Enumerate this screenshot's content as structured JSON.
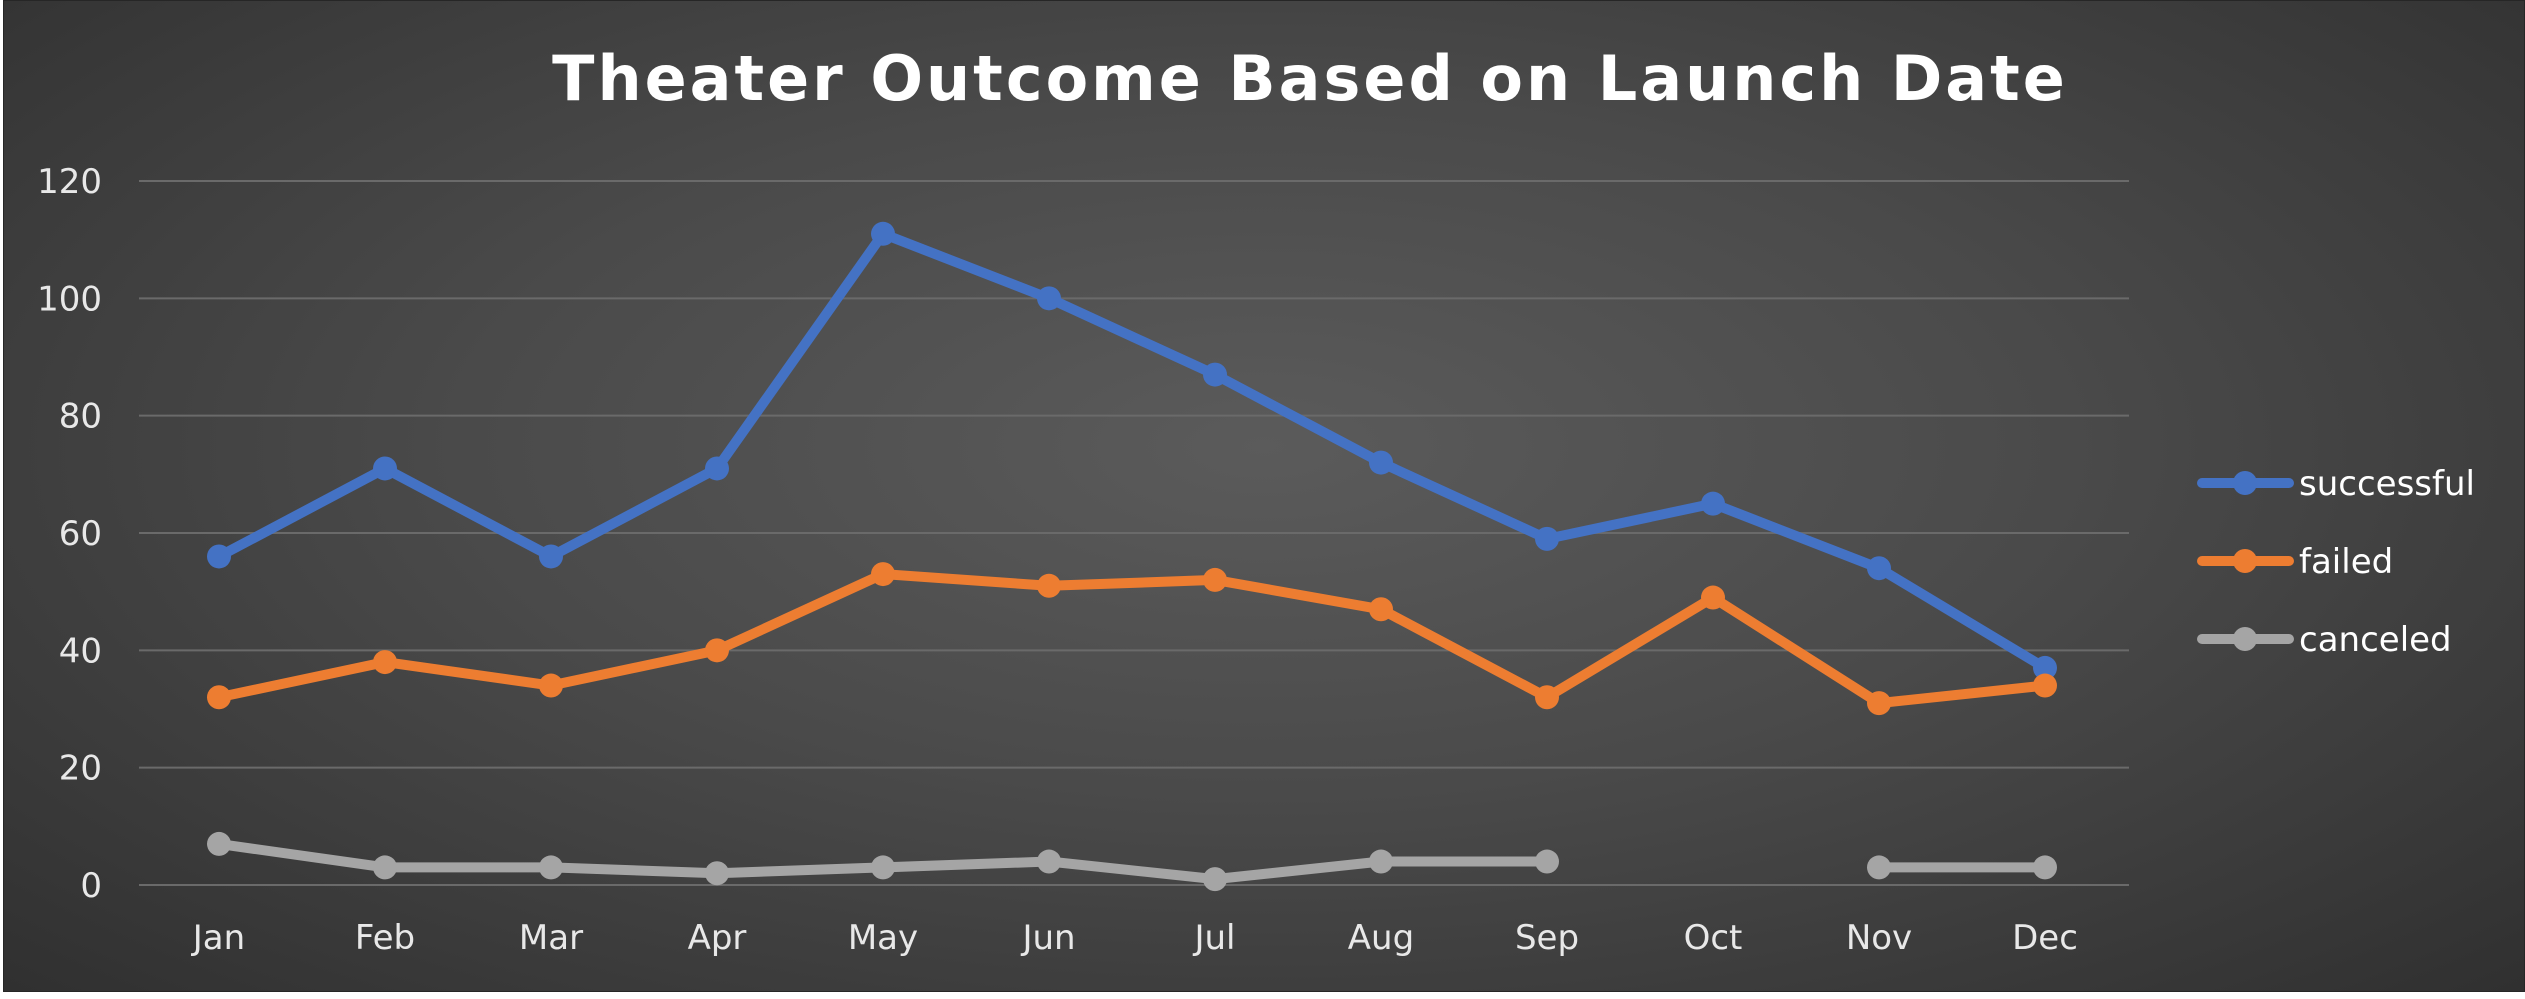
{
  "chart_data": {
    "type": "line",
    "title": "Theater Outcome Based on Launch Date",
    "xlabel": "",
    "ylabel": "",
    "categories": [
      "Jan",
      "Feb",
      "Mar",
      "Apr",
      "May",
      "Jun",
      "Jul",
      "Aug",
      "Sep",
      "Oct",
      "Nov",
      "Dec"
    ],
    "ylim": [
      0,
      120
    ],
    "yticks": [
      0,
      20,
      40,
      60,
      80,
      100,
      120
    ],
    "grid": true,
    "legend_position": "right",
    "series": [
      {
        "name": "successful",
        "color": "#4472c4",
        "values": [
          56,
          71,
          56,
          71,
          111,
          100,
          87,
          72,
          59,
          65,
          54,
          37
        ]
      },
      {
        "name": "failed",
        "color": "#ed7d31",
        "values": [
          32,
          38,
          34,
          40,
          53,
          51,
          52,
          47,
          32,
          49,
          31,
          34
        ]
      },
      {
        "name": "canceled",
        "color": "#a5a5a5",
        "values": [
          7,
          3,
          3,
          2,
          3,
          4,
          1,
          4,
          4,
          null,
          3,
          3
        ]
      }
    ]
  }
}
